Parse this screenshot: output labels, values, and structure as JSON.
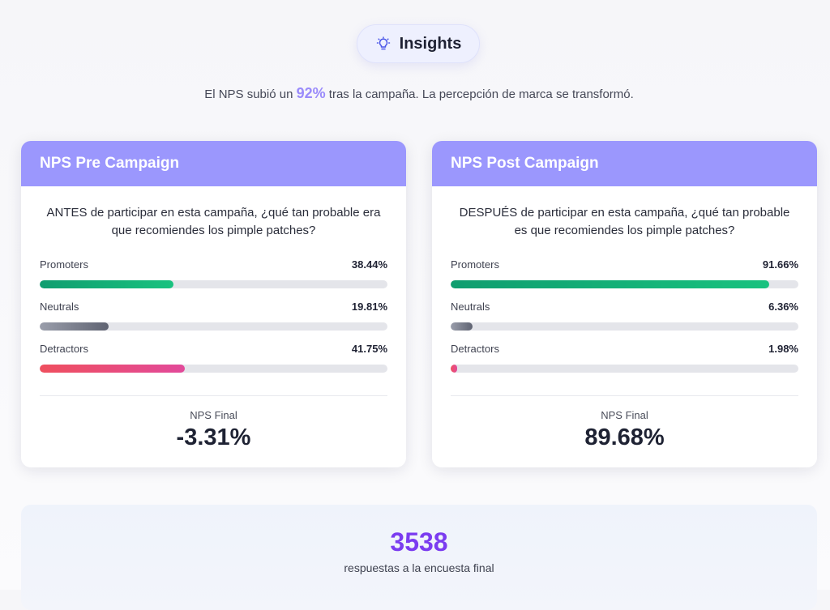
{
  "insights": {
    "icon": "lightbulb-icon",
    "label": "Insights"
  },
  "summary": {
    "before": "El NPS subió un ",
    "highlight": "92%",
    "after": " tras la campaña. La percepción de marca se transformó."
  },
  "colors": {
    "header": "#9b97fd",
    "accent": "#9a8bfb",
    "count": "#7b3cf0",
    "promoters": "#19c27f",
    "neutrals": "#5f6372",
    "detractors": "#ef4f5e"
  },
  "cards": [
    {
      "title": "NPS Pre Campaign",
      "question": "ANTES de participar en esta campaña, ¿qué tan probable era que recomiendes los pimple patches?",
      "metrics": [
        {
          "name": "Promoters",
          "value": "38.44%",
          "percent": 38.44
        },
        {
          "name": "Neutrals",
          "value": "19.81%",
          "percent": 19.81
        },
        {
          "name": "Detractors",
          "value": "41.75%",
          "percent": 41.75
        }
      ],
      "final_label": "NPS Final",
      "final_value": "-3.31%"
    },
    {
      "title": "NPS Post Campaign",
      "question": "DESPUÉS de participar en esta campaña, ¿qué tan probable es que recomiendes los pimple patches?",
      "metrics": [
        {
          "name": "Promoters",
          "value": "91.66%",
          "percent": 91.66
        },
        {
          "name": "Neutrals",
          "value": "6.36%",
          "percent": 6.36
        },
        {
          "name": "Detractors",
          "value": "1.98%",
          "percent": 1.98
        }
      ],
      "final_label": "NPS Final",
      "final_value": "89.68%"
    }
  ],
  "responses": {
    "count": "3538",
    "label": "respuestas a la encuesta final"
  }
}
